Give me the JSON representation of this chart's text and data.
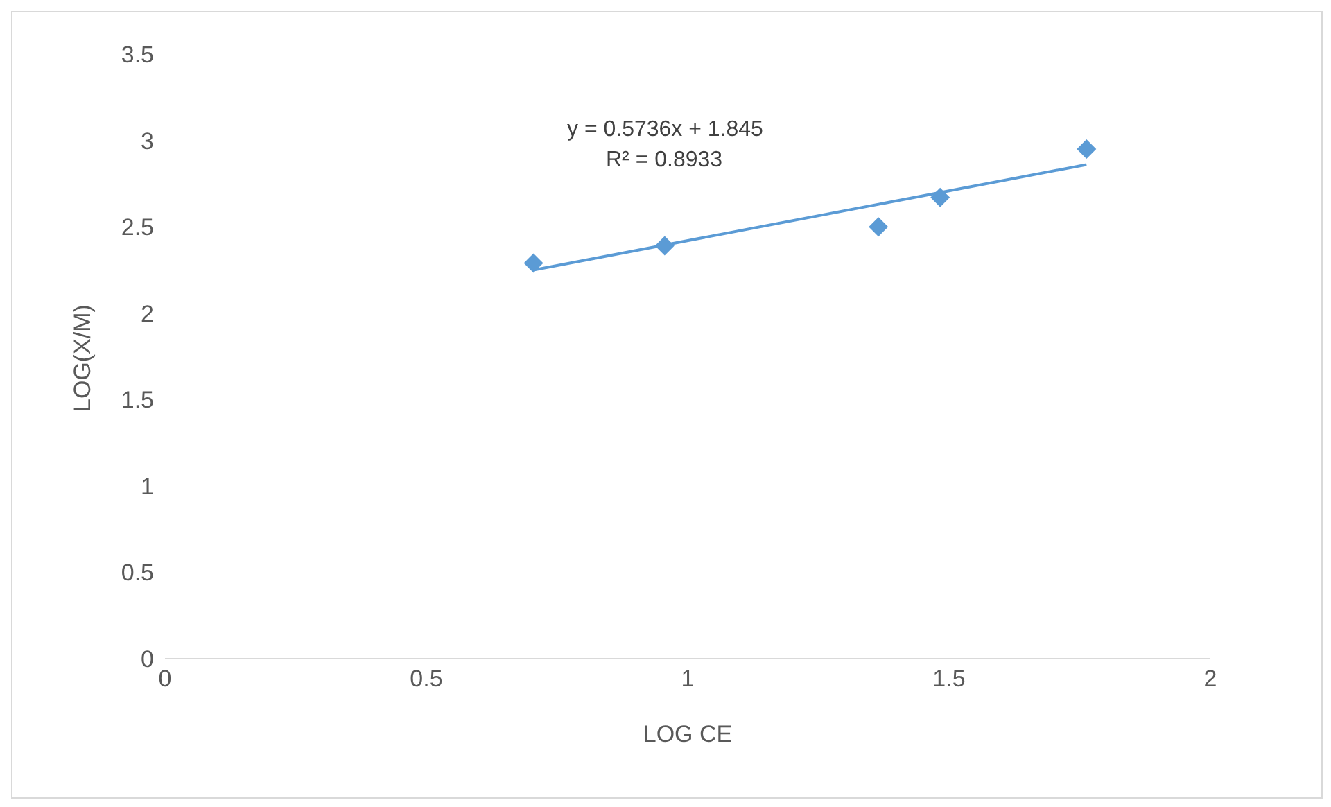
{
  "chart_data": {
    "type": "scatter",
    "xlabel": "LOG CE",
    "ylabel": "LOG(X/M)",
    "xlim": [
      0,
      2
    ],
    "xticks": [
      0,
      0.5,
      1,
      1.5,
      2
    ],
    "ylim": [
      0,
      3.5
    ],
    "yticks": [
      0,
      0.5,
      1,
      1.5,
      2,
      2.5,
      3,
      3.5
    ],
    "grid": false,
    "legend": false,
    "annotations": [
      "y = 0.5736x + 1.845",
      "R² = 0.8933"
    ],
    "series": [
      {
        "color": "#5b9bd5",
        "marker": "diamond",
        "x": [
          0.705,
          0.956,
          1.365,
          1.483,
          1.763
        ],
        "values": [
          2.29,
          2.39,
          2.5,
          2.67,
          2.95
        ]
      },
      {
        "type": "line",
        "color": "#5b9bd5",
        "marker": "none",
        "line_style": "solid",
        "x": [
          0.705,
          1.763
        ],
        "values": [
          2.25,
          2.86
        ]
      }
    ]
  }
}
